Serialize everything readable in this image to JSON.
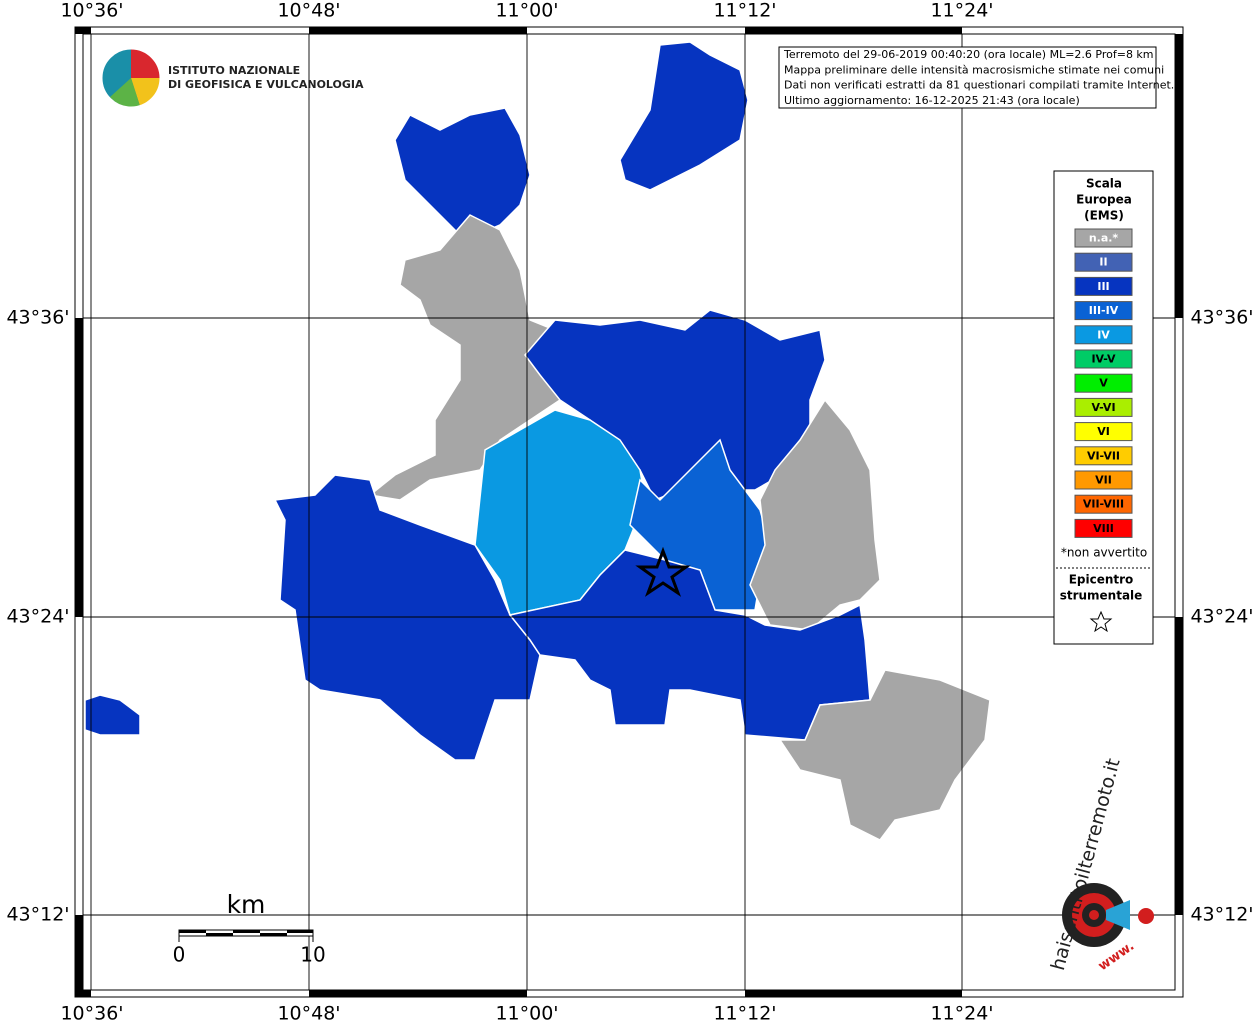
{
  "logo": {
    "line1": "ISTITUTO NAZIONALE",
    "line2": "DI GEOFISICA E VULCANOLOGIA"
  },
  "info": [
    "Terremoto del 29-06-2019 00:40:20 (ora locale) ML=2.6 Prof=8 km",
    "Mappa preliminare delle intensità macrosismiche stimate nei comuni",
    "Dati non verificati estratti da 81 questionari compilati tramite Internet.",
    "Ultimo aggiornamento: 16-12-2025 21:43 (ora locale)"
  ],
  "axes": {
    "top": [
      "10°36'",
      "10°48'",
      "11°00'",
      "11°12'",
      "11°24'"
    ],
    "bottom": [
      "10°36'",
      "10°48'",
      "11°00'",
      "11°12'",
      "11°24'"
    ],
    "left": [
      "43°36'",
      "43°24'",
      "43°12'"
    ],
    "right": [
      "43°36'",
      "43°24'",
      "43°12'"
    ]
  },
  "legend": {
    "title": [
      "Scala",
      "Europea",
      "(EMS)"
    ],
    "items": [
      {
        "label": "n.a.*",
        "color": "#a6a6a6"
      },
      {
        "label": "II",
        "color": "#4262b4"
      },
      {
        "label": "III",
        "color": "#0634c0"
      },
      {
        "label": "III-IV",
        "color": "#0a62d4"
      },
      {
        "label": "IV",
        "color": "#0a99e2"
      },
      {
        "label": "IV-V",
        "color": "#00cc66"
      },
      {
        "label": "V",
        "color": "#00ee00"
      },
      {
        "label": "V-VI",
        "color": "#aaee00"
      },
      {
        "label": "VI",
        "color": "#ffff00"
      },
      {
        "label": "VI-VII",
        "color": "#ffcc00"
      },
      {
        "label": "VII",
        "color": "#ff9900"
      },
      {
        "label": "VII-VIII",
        "color": "#ff6600"
      },
      {
        "label": "VIII",
        "color": "#ff0000"
      }
    ],
    "note": "*non avvertito",
    "epicenter": [
      "Epicentro",
      "strumentale"
    ]
  },
  "scale": {
    "unit": "km",
    "ticks": [
      "0",
      "10"
    ]
  },
  "badge": {
    "site": "haisentitoilterremoto.it",
    "prefix": "www."
  }
}
